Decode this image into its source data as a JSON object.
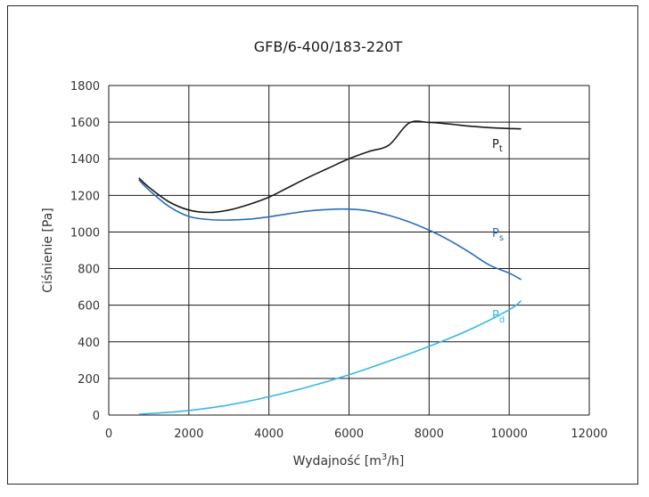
{
  "chart_data": {
    "type": "line",
    "title": "GFB/6-400/183-220T",
    "xlabel": "Wydajność [m",
    "xlabel_sup": "3",
    "xlabel_tail": "/h]",
    "ylabel": "Ciśnienie [Pa]",
    "xlim": [
      0,
      12000
    ],
    "ylim": [
      0,
      1800
    ],
    "xticks": [
      0,
      2000,
      4000,
      6000,
      8000,
      10000,
      12000
    ],
    "yticks": [
      0,
      200,
      400,
      600,
      800,
      1000,
      1200,
      1400,
      1600,
      1800
    ],
    "grid": true,
    "series": [
      {
        "name": "P",
        "subscript": "t",
        "color": "#1a1a1a",
        "x": [
          750,
          1000,
          1500,
          2000,
          2500,
          3000,
          3500,
          4000,
          4500,
          5000,
          5500,
          6000,
          6500,
          7000,
          7500,
          8000,
          8500,
          9000,
          9500,
          10000,
          10300
        ],
        "y": [
          1295,
          1245,
          1165,
          1120,
          1107,
          1120,
          1150,
          1190,
          1245,
          1300,
          1350,
          1400,
          1440,
          1475,
          1595,
          1598,
          1590,
          1578,
          1570,
          1565,
          1563
        ]
      },
      {
        "name": "P",
        "subscript": "s",
        "color": "#2b6cb8",
        "x": [
          750,
          1000,
          1500,
          2000,
          2500,
          3000,
          3500,
          4000,
          4500,
          5000,
          5500,
          6000,
          6500,
          7000,
          7500,
          8000,
          8500,
          9000,
          9500,
          10000,
          10300
        ],
        "y": [
          1285,
          1230,
          1140,
          1085,
          1068,
          1065,
          1070,
          1083,
          1100,
          1115,
          1123,
          1125,
          1115,
          1090,
          1055,
          1010,
          955,
          890,
          820,
          775,
          740
        ]
      },
      {
        "name": "P",
        "subscript": "d",
        "color": "#35b8e6",
        "x": [
          750,
          1500,
          2000,
          3000,
          4000,
          5000,
          6000,
          7000,
          8000,
          9000,
          10000,
          10300
        ],
        "y": [
          5,
          15,
          25,
          55,
          100,
          155,
          220,
          295,
          375,
          465,
          575,
          625
        ]
      }
    ]
  }
}
